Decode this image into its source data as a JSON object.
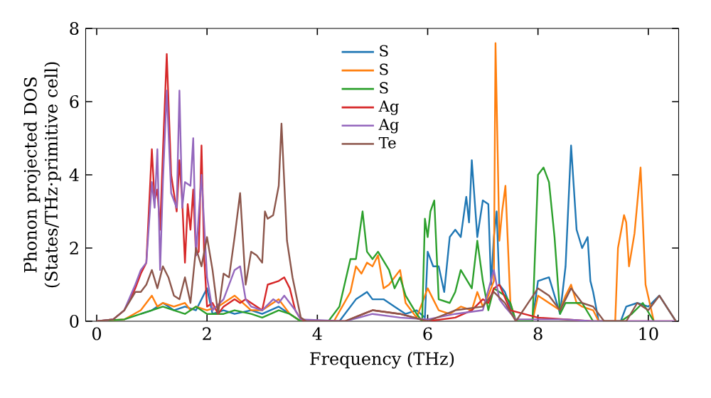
{
  "chart_data": {
    "type": "line",
    "xlabel": "Frequency (THz)",
    "ylabel": "Phonon projected DOS (States/THz·primitive cell)",
    "xlim": [
      -0.2,
      10.55
    ],
    "ylim": [
      0,
      8
    ],
    "xticks": [
      0,
      2,
      4,
      6,
      8,
      10
    ],
    "yticks": [
      0,
      2,
      4,
      6,
      8
    ],
    "legend": "top",
    "grid": false,
    "marker": "none",
    "line_style": "solid",
    "series": [
      {
        "name": "S",
        "color": "#1f77b4",
        "x": [
          0.8,
          1.0,
          1.2,
          1.4,
          1.6,
          1.8,
          2.0,
          2.1,
          2.3,
          2.5,
          2.8,
          3.0,
          3.3,
          3.5,
          3.7,
          4.4,
          4.7,
          4.9,
          5.0,
          5.2,
          5.4,
          5.6,
          5.8,
          5.95,
          6.0,
          6.1,
          6.2,
          6.3,
          6.4,
          6.5,
          6.6,
          6.7,
          6.75,
          6.8,
          6.9,
          7.0,
          7.1,
          7.15,
          7.2,
          7.25,
          7.3,
          7.4,
          7.5,
          7.6,
          7.9,
          8.0,
          8.2,
          8.4,
          8.5,
          8.6,
          8.7,
          8.8,
          8.9,
          8.95,
          9.0,
          9.1,
          9.5,
          9.6,
          9.8,
          10.0,
          10.2,
          10.5
        ],
        "values": [
          0.2,
          0.3,
          0.5,
          0.3,
          0.4,
          0.3,
          0.9,
          0.2,
          0.3,
          0.2,
          0.3,
          0.2,
          0.4,
          0.2,
          0,
          0,
          0.6,
          0.8,
          0.6,
          0.6,
          0.4,
          0.2,
          0.3,
          0.1,
          1.9,
          1.5,
          1.5,
          0.8,
          2.3,
          2.5,
          2.3,
          3.4,
          2.7,
          4.4,
          2.3,
          3.3,
          3.2,
          1.0,
          2.3,
          3.0,
          1.0,
          0.8,
          0.4,
          0,
          0,
          1.1,
          1.2,
          0.2,
          1.5,
          4.8,
          2.5,
          2.0,
          2.3,
          1.1,
          0.8,
          0,
          0,
          0.4,
          0.5,
          0.4,
          0.7,
          0
        ]
      },
      {
        "name": "S",
        "color": "#ff7f0e",
        "x": [
          0,
          0.5,
          0.8,
          1.0,
          1.1,
          1.2,
          1.4,
          1.6,
          1.7,
          1.8,
          2.0,
          2.2,
          2.5,
          2.8,
          3.0,
          3.3,
          3.5,
          3.7,
          4.3,
          4.6,
          4.7,
          4.8,
          4.9,
          5.0,
          5.1,
          5.2,
          5.3,
          5.5,
          5.6,
          5.8,
          6.0,
          6.1,
          6.2,
          6.4,
          6.6,
          6.8,
          6.9,
          7.0,
          7.1,
          7.2,
          7.23,
          7.3,
          7.35,
          7.41,
          7.5,
          7.6,
          7.9,
          8.0,
          8.2,
          8.4,
          8.5,
          8.6,
          8.7,
          8.8,
          9.0,
          9.1,
          9.4,
          9.45,
          9.56,
          9.6,
          9.65,
          9.75,
          9.86,
          9.95,
          10.1
        ],
        "values": [
          0,
          0.05,
          0.3,
          0.7,
          0.4,
          0.5,
          0.4,
          0.5,
          0.3,
          0.4,
          0.3,
          0.4,
          0.7,
          0.3,
          0.3,
          0.6,
          0.2,
          0,
          0,
          0.8,
          1.5,
          1.3,
          1.6,
          1.5,
          1.8,
          0.9,
          1.0,
          1.4,
          0.5,
          0.1,
          0.9,
          0.6,
          0.3,
          0.2,
          0.4,
          0.3,
          0.8,
          0.4,
          0.7,
          1.1,
          7.6,
          2.2,
          3.0,
          3.7,
          0.5,
          0,
          0,
          0.7,
          0.5,
          0.3,
          0.7,
          1.0,
          0.5,
          0.4,
          0.3,
          0,
          0,
          2.0,
          2.9,
          2.7,
          1.5,
          2.4,
          4.2,
          1.0,
          0
        ]
      },
      {
        "name": "S",
        "color": "#2ca02c",
        "x": [
          0,
          0.5,
          0.8,
          1.0,
          1.2,
          1.4,
          1.6,
          1.8,
          2.0,
          2.3,
          2.5,
          2.8,
          3.0,
          3.3,
          3.5,
          3.7,
          4.2,
          4.4,
          4.6,
          4.7,
          4.82,
          4.9,
          5.0,
          5.1,
          5.3,
          5.4,
          5.5,
          5.6,
          5.8,
          5.9,
          5.95,
          6.0,
          6.05,
          6.12,
          6.2,
          6.4,
          6.5,
          6.6,
          6.8,
          6.9,
          7.0,
          7.1,
          7.2,
          7.3,
          7.4,
          7.5,
          7.6,
          7.9,
          8.0,
          8.1,
          8.2,
          8.3,
          8.4,
          8.5,
          8.6,
          8.8,
          9.0,
          9.5,
          9.7,
          9.9,
          10.1
        ],
        "values": [
          0,
          0.05,
          0.2,
          0.3,
          0.4,
          0.3,
          0.2,
          0.4,
          0.2,
          0.2,
          0.3,
          0.2,
          0.1,
          0.3,
          0.2,
          0,
          0,
          0.4,
          1.7,
          1.7,
          3.0,
          1.9,
          1.7,
          1.9,
          1.4,
          0.9,
          1.2,
          0.7,
          0.2,
          0,
          2.8,
          2.3,
          3.0,
          3.3,
          0.6,
          0.5,
          0.8,
          1.4,
          0.9,
          2.2,
          1.1,
          0.3,
          0.9,
          0.8,
          0.7,
          0.5,
          0,
          0,
          4.0,
          4.2,
          3.8,
          2.3,
          0.2,
          0.5,
          0.5,
          0.5,
          0,
          0,
          0.2,
          0.5,
          0
        ]
      },
      {
        "name": "Ag",
        "color": "#d62728",
        "x": [
          0,
          0.3,
          0.5,
          0.7,
          0.8,
          0.9,
          1.0,
          1.05,
          1.1,
          1.15,
          1.2,
          1.27,
          1.35,
          1.45,
          1.5,
          1.55,
          1.6,
          1.65,
          1.7,
          1.75,
          1.8,
          1.85,
          1.9,
          1.95,
          2.0,
          2.1,
          2.2,
          2.3,
          2.5,
          2.6,
          2.7,
          2.8,
          3.0,
          3.1,
          3.3,
          3.4,
          3.5,
          3.6,
          3.7,
          3.8,
          4.5,
          5.0,
          5.5,
          6.0,
          6.5,
          6.8,
          7.0,
          7.1,
          7.2,
          7.3,
          7.5,
          8.0,
          8.5,
          9.0,
          10.5
        ],
        "values": [
          0,
          0.05,
          0.3,
          0.9,
          1.3,
          1.6,
          4.7,
          3.3,
          3.6,
          2.5,
          4.6,
          7.3,
          4.0,
          3.0,
          4.4,
          3.3,
          1.6,
          3.2,
          2.5,
          3.6,
          1.8,
          1.9,
          4.8,
          1.7,
          0.4,
          0.5,
          0.2,
          0.4,
          0.6,
          0.5,
          0.6,
          0.5,
          0.3,
          1.0,
          1.1,
          1.2,
          0.9,
          0.3,
          0.05,
          0,
          0,
          0.3,
          0.2,
          0,
          0.1,
          0.3,
          0.6,
          0.5,
          0.9,
          1.0,
          0.3,
          0.1,
          0.05,
          0,
          0
        ]
      },
      {
        "name": "Ag",
        "color": "#9467bd",
        "x": [
          0,
          0.3,
          0.5,
          0.7,
          0.8,
          0.9,
          1.0,
          1.05,
          1.1,
          1.15,
          1.2,
          1.27,
          1.35,
          1.45,
          1.5,
          1.55,
          1.6,
          1.7,
          1.75,
          1.8,
          1.9,
          2.0,
          2.1,
          2.3,
          2.5,
          2.6,
          2.7,
          2.8,
          3.0,
          3.2,
          3.3,
          3.4,
          3.6,
          3.7,
          4.5,
          5.0,
          5.5,
          6.0,
          6.5,
          7.0,
          7.2,
          7.3,
          7.4,
          7.6,
          8.0,
          8.5,
          9.0,
          10.5
        ],
        "values": [
          0,
          0.05,
          0.3,
          1.0,
          1.4,
          1.6,
          3.8,
          3.1,
          4.7,
          1.4,
          3.8,
          6.3,
          3.5,
          3.1,
          6.3,
          3.1,
          3.8,
          3.7,
          5.0,
          1.8,
          4.0,
          1.2,
          0.3,
          0.6,
          1.4,
          1.5,
          0.6,
          0.4,
          0.3,
          0.6,
          0.5,
          0.7,
          0.3,
          0.05,
          0,
          0.2,
          0.1,
          0.05,
          0.2,
          0.3,
          1.4,
          0.6,
          0.4,
          0.05,
          0.05,
          0.05,
          0,
          0
        ]
      },
      {
        "name": "Te",
        "color": "#8c564b",
        "x": [
          0,
          0.3,
          0.5,
          0.7,
          0.8,
          0.9,
          1.0,
          1.1,
          1.2,
          1.3,
          1.4,
          1.5,
          1.6,
          1.7,
          1.8,
          1.9,
          2.0,
          2.1,
          2.2,
          2.3,
          2.4,
          2.5,
          2.6,
          2.7,
          2.8,
          2.9,
          3.0,
          3.05,
          3.1,
          3.2,
          3.3,
          3.35,
          3.45,
          3.55,
          3.7,
          3.8,
          4.5,
          5.0,
          5.5,
          6.0,
          6.5,
          7.0,
          7.2,
          7.4,
          7.6,
          8.0,
          8.2,
          8.4,
          8.6,
          8.8,
          9.0,
          9.2,
          9.6,
          9.8,
          10.0,
          10.2,
          10.5
        ],
        "values": [
          0,
          0.05,
          0.3,
          0.8,
          0.8,
          1.0,
          1.4,
          0.9,
          1.5,
          1.2,
          0.7,
          0.6,
          1.2,
          0.5,
          2.0,
          1.5,
          2.3,
          1.4,
          0.2,
          1.3,
          1.2,
          2.3,
          3.5,
          1.0,
          1.9,
          1.8,
          1.6,
          3.0,
          2.8,
          2.9,
          3.7,
          5.4,
          2.2,
          1.2,
          0.1,
          0,
          0,
          0.3,
          0.2,
          0,
          0.3,
          0.4,
          0.8,
          0.5,
          0,
          0.9,
          0.7,
          0.3,
          0.9,
          0.5,
          0.4,
          0,
          0,
          0.5,
          0.3,
          0.7,
          0
        ]
      }
    ]
  }
}
